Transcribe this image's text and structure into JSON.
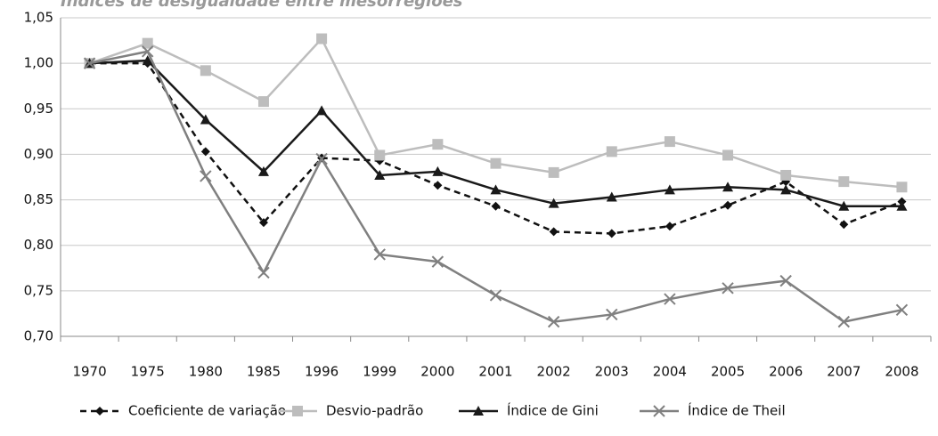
{
  "chart_data": {
    "type": "line",
    "title": "Índices de desigualdade entre mesorregiões",
    "categories": [
      "1970",
      "1975",
      "1980",
      "1985",
      "1996",
      "1999",
      "2000",
      "2001",
      "2002",
      "2003",
      "2004",
      "2005",
      "2006",
      "2007",
      "2008"
    ],
    "series": [
      {
        "name": "Coeficiente de variação",
        "color": "#111111",
        "marker": "diamond",
        "dash": true,
        "values": [
          1.0,
          1.0,
          0.903,
          0.825,
          0.896,
          0.893,
          0.866,
          0.843,
          0.815,
          0.813,
          0.821,
          0.844,
          0.87,
          0.823,
          0.848
        ]
      },
      {
        "name": "Desvio-padrão",
        "color": "#bdbdbd",
        "marker": "square",
        "dash": false,
        "values": [
          1.0,
          1.022,
          0.992,
          0.958,
          1.027,
          0.899,
          0.911,
          0.89,
          0.88,
          0.903,
          0.914,
          0.899,
          0.877,
          0.87,
          0.864
        ]
      },
      {
        "name": "Índice de Gini",
        "color": "#1a1a1a",
        "marker": "triangle",
        "dash": false,
        "values": [
          1.0,
          1.003,
          0.938,
          0.881,
          0.948,
          0.877,
          0.881,
          0.861,
          0.846,
          0.853,
          0.861,
          0.864,
          0.861,
          0.843,
          0.843
        ]
      },
      {
        "name": "Índice de Theil",
        "color": "#808080",
        "marker": "x",
        "dash": false,
        "values": [
          1.0,
          1.013,
          0.876,
          0.77,
          0.895,
          0.79,
          0.782,
          0.745,
          0.716,
          0.724,
          0.741,
          0.753,
          0.761,
          0.716,
          0.729
        ]
      }
    ],
    "ylim": [
      0.7,
      1.05
    ],
    "yticks": [
      {
        "value": 0.7,
        "label": "0,70"
      },
      {
        "value": 0.75,
        "label": "0,75"
      },
      {
        "value": 0.8,
        "label": "0,80"
      },
      {
        "value": 0.85,
        "label": "0,85"
      },
      {
        "value": 0.9,
        "label": "0,90"
      },
      {
        "value": 0.95,
        "label": "0,95"
      },
      {
        "value": 1.0,
        "label": "1,00"
      },
      {
        "value": 1.05,
        "label": "1,05"
      }
    ],
    "grid": true,
    "legend": "bottom"
  }
}
